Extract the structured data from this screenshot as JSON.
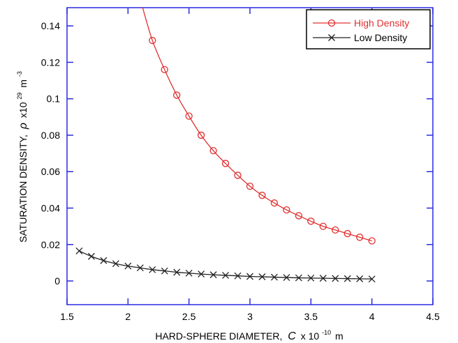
{
  "chart_data": {
    "type": "line",
    "xlabel": {
      "main": "HARD-SPHERE DIAMETER,",
      "symbol": "C",
      "unit_prefix": "x 10",
      "exponent": "-10",
      "unit": "m"
    },
    "ylabel": {
      "main": "SATURATION DENSITY,",
      "symbol": "ρ",
      "unit_prefix": "x10",
      "exponent": "29",
      "unit": "m",
      "unit_exponent": "-3"
    },
    "xlim": [
      1.5,
      4.5
    ],
    "ylim": [
      -0.013,
      0.15
    ],
    "x_ticks": [
      1.5,
      2,
      2.5,
      3,
      3.5,
      4,
      4.5
    ],
    "x_tick_labels": [
      "1.5",
      "2",
      "2.5",
      "3",
      "3.5",
      "4",
      "4.5"
    ],
    "y_ticks": [
      0,
      0.02,
      0.04,
      0.06,
      0.08,
      0.1,
      0.12,
      0.14
    ],
    "y_tick_labels": [
      "0",
      "0.02",
      "0.04",
      "0.06",
      "0.08",
      "0.1",
      "0.12",
      "0.14"
    ],
    "grid": false,
    "legend_position": "top-right",
    "series": [
      {
        "name": "High Density",
        "color": "#e03030",
        "marker": "circle",
        "x": [
          2.2,
          2.3,
          2.4,
          2.5,
          2.6,
          2.7,
          2.8,
          2.9,
          3.0,
          3.1,
          3.2,
          3.3,
          3.4,
          3.5,
          3.6,
          3.7,
          3.8,
          3.9,
          4.0
        ],
        "y": [
          0.132,
          0.116,
          0.102,
          0.0905,
          0.08,
          0.0715,
          0.0645,
          0.058,
          0.052,
          0.047,
          0.0428,
          0.039,
          0.0358,
          0.0328,
          0.03,
          0.028,
          0.026,
          0.024,
          0.022
        ],
        "curve_start": [
          2.12,
          0.15
        ]
      },
      {
        "name": "Low Density",
        "color": "#222222",
        "marker": "x",
        "x": [
          1.6,
          1.7,
          1.8,
          1.9,
          2.0,
          2.1,
          2.2,
          2.3,
          2.4,
          2.5,
          2.6,
          2.7,
          2.8,
          2.9,
          3.0,
          3.1,
          3.2,
          3.3,
          3.4,
          3.5,
          3.6,
          3.7,
          3.8,
          3.9,
          4.0
        ],
        "y": [
          0.0165,
          0.0135,
          0.0112,
          0.0095,
          0.0082,
          0.0072,
          0.0062,
          0.0055,
          0.0048,
          0.0043,
          0.0038,
          0.0034,
          0.0031,
          0.0028,
          0.0025,
          0.0023,
          0.0021,
          0.0019,
          0.0017,
          0.0016,
          0.0015,
          0.0014,
          0.0013,
          0.0012,
          0.0011
        ]
      }
    ],
    "frame_color": "#2a2ae0"
  }
}
